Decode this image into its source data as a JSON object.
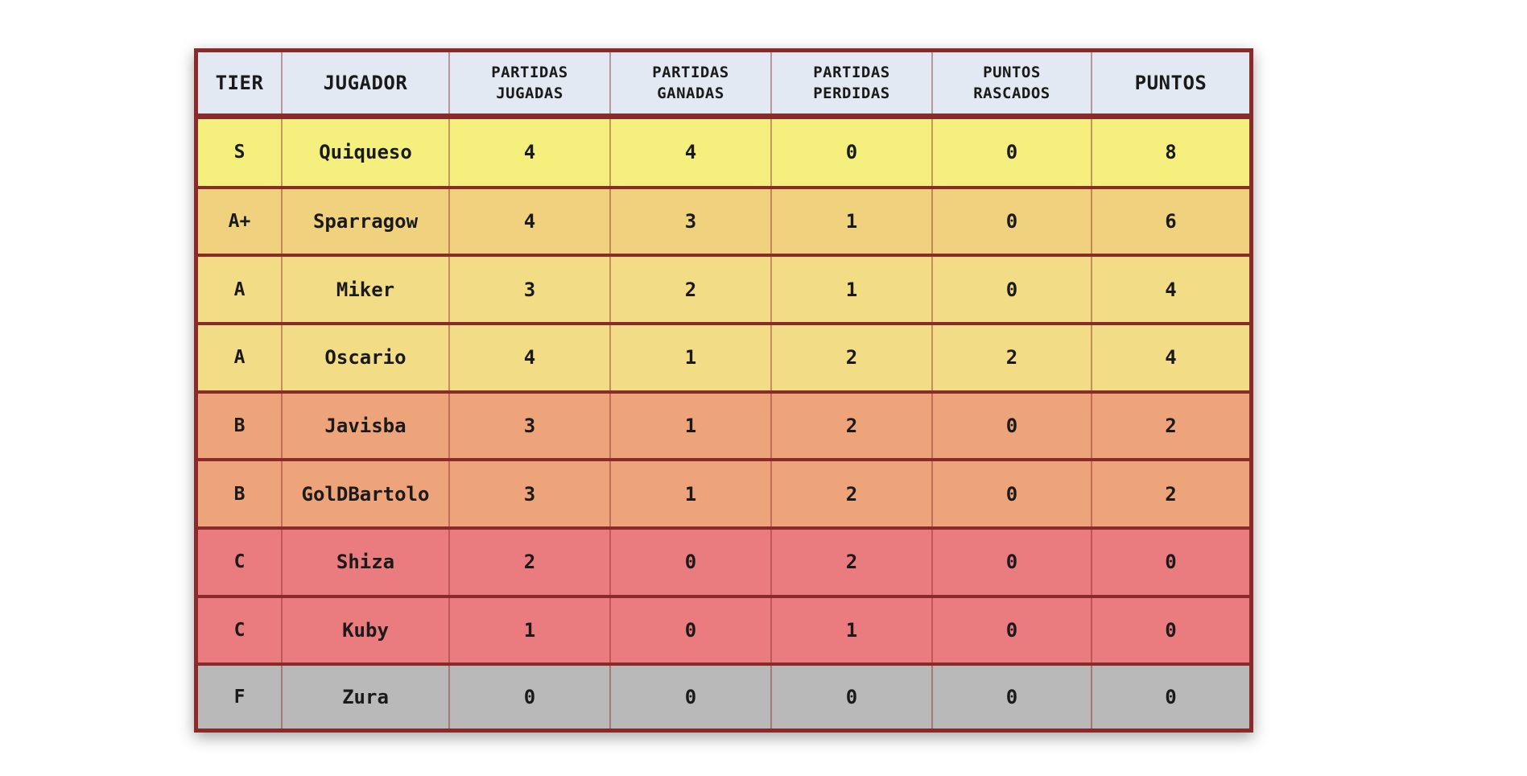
{
  "columns": [
    {
      "lines": [
        "TIER"
      ],
      "big": true
    },
    {
      "lines": [
        "JUGADOR"
      ],
      "big": true
    },
    {
      "lines": [
        "PARTIDAS",
        "JUGADAS"
      ],
      "big": false
    },
    {
      "lines": [
        "PARTIDAS",
        "GANADAS"
      ],
      "big": false
    },
    {
      "lines": [
        "PARTIDAS",
        "PERDIDAS"
      ],
      "big": false
    },
    {
      "lines": [
        "PUNTOS",
        "RASCADOS"
      ],
      "big": false
    },
    {
      "lines": [
        "PUNTOS"
      ],
      "big": true
    }
  ],
  "rows": [
    {
      "tier": "S",
      "player": "Quiqueso",
      "played": "4",
      "won": "4",
      "lost": "0",
      "scraped": "0",
      "points": "8",
      "color": "#f5f07e"
    },
    {
      "tier": "A+",
      "player": "Sparragow",
      "played": "4",
      "won": "3",
      "lost": "1",
      "scraped": "0",
      "points": "6",
      "color": "#f0d27e"
    },
    {
      "tier": "A",
      "player": "Miker",
      "played": "3",
      "won": "2",
      "lost": "1",
      "scraped": "0",
      "points": "4",
      "color": "#f3dc86"
    },
    {
      "tier": "A",
      "player": "Oscario",
      "played": "4",
      "won": "1",
      "lost": "2",
      "scraped": "2",
      "points": "4",
      "color": "#f3dc86"
    },
    {
      "tier": "B",
      "player": "Javisba",
      "played": "3",
      "won": "1",
      "lost": "2",
      "scraped": "0",
      "points": "2",
      "color": "#eea47a"
    },
    {
      "tier": "B",
      "player": "GolDBartolo",
      "played": "3",
      "won": "1",
      "lost": "2",
      "scraped": "0",
      "points": "2",
      "color": "#eea47a"
    },
    {
      "tier": "C",
      "player": "Shiza",
      "played": "2",
      "won": "0",
      "lost": "2",
      "scraped": "0",
      "points": "0",
      "color": "#ea7c80"
    },
    {
      "tier": "C",
      "player": "Kuby",
      "played": "1",
      "won": "0",
      "lost": "1",
      "scraped": "0",
      "points": "0",
      "color": "#ea7c80"
    },
    {
      "tier": "F",
      "player": "Zura",
      "played": "0",
      "won": "0",
      "lost": "0",
      "scraped": "0",
      "points": "0",
      "color": "#b9b9b9"
    }
  ]
}
